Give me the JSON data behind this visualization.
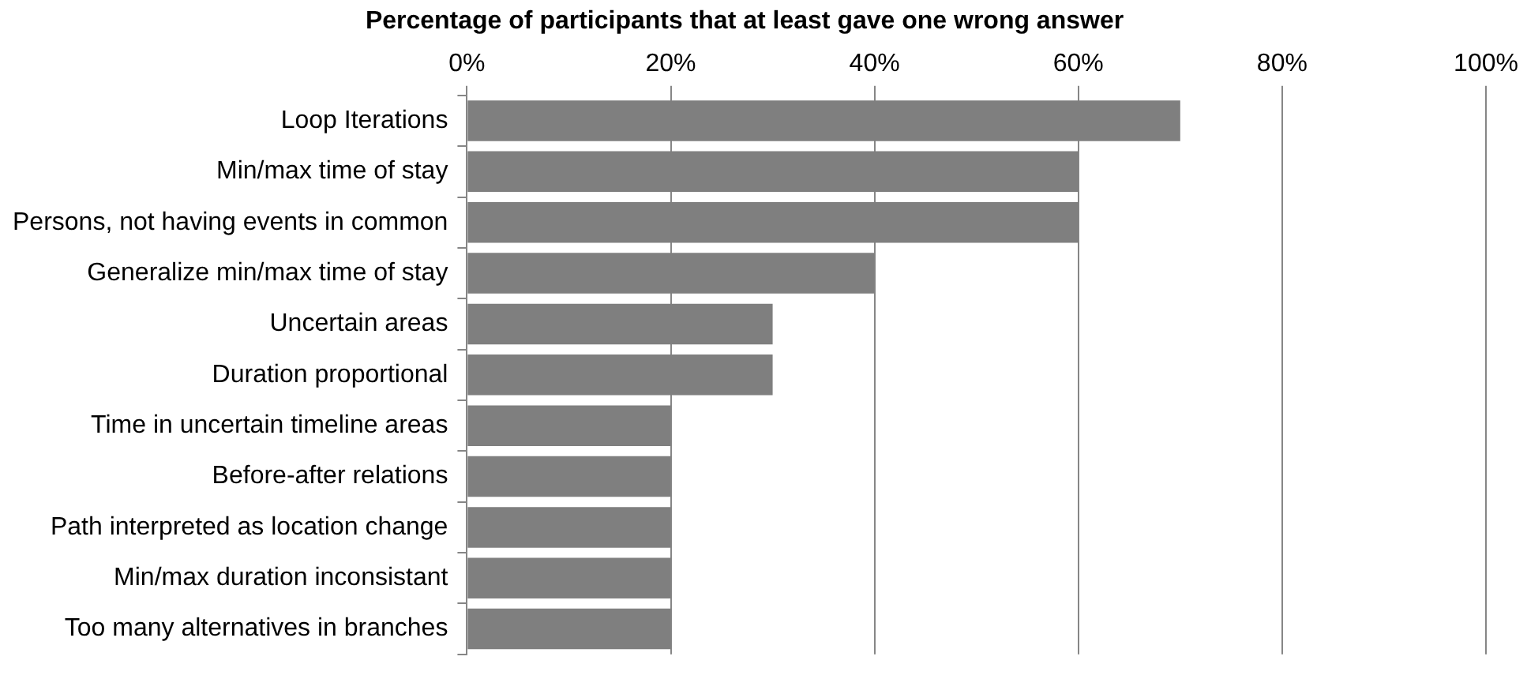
{
  "chart_data": {
    "type": "bar",
    "orientation": "horizontal",
    "title": "Percentage of participants that at least gave one wrong answer",
    "categories": [
      "Loop Iterations",
      "Min/max time of stay",
      "Persons, not having events in common",
      "Generalize min/max time of stay",
      "Uncertain areas",
      "Duration proportional",
      "Time in uncertain timeline areas",
      "Before-after relations",
      "Path interpreted as location change",
      "Min/max duration inconsistant",
      "Too many alternatives in branches"
    ],
    "values": [
      70,
      60,
      60,
      40,
      30,
      30,
      20,
      20,
      20,
      20,
      20
    ],
    "color": "#7f7f7f",
    "xlim": [
      0,
      100
    ],
    "xticks": [
      {
        "value": 0,
        "label": "0%"
      },
      {
        "value": 20,
        "label": "20%"
      },
      {
        "value": 40,
        "label": "40%"
      },
      {
        "value": 60,
        "label": "60%"
      },
      {
        "value": 80,
        "label": "80%"
      },
      {
        "value": 100,
        "label": "100%"
      }
    ],
    "grid": "x",
    "legend": false
  }
}
